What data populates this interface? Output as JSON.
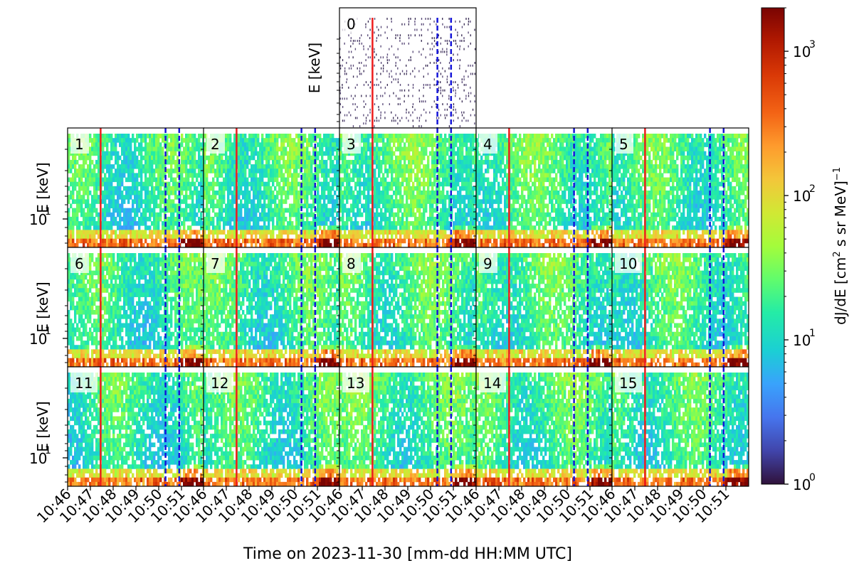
{
  "chart_data": {
    "type": "heatmap",
    "title": "",
    "date": "2023-11-30",
    "xlabel": "Time on 2023-11-30 [mm-dd HH:MM UTC]",
    "ylabel": "E [keV]",
    "y_tick_label_base": "10",
    "y_tick_label_exp": "1",
    "x_tick_labels": [
      "10:46",
      "10:47",
      "10:48",
      "10:49",
      "10:50",
      "10:51"
    ],
    "x_range_minutes": [
      0,
      6
    ],
    "y_scale": "log",
    "marker_lines": {
      "solid_red_minute": 1.45,
      "dashed_blue_minutes": [
        4.3,
        4.9
      ]
    },
    "colorbar": {
      "label": "dJ/dE [cm² s sr MeV]⁻¹",
      "label_main": "dJ/dE [cm",
      "label_sup1": "2",
      "label_mid": " s sr MeV]",
      "label_sup2": "−1",
      "scale": "log",
      "range": [
        1,
        2000
      ],
      "ticks": [
        {
          "base": "10",
          "exp": "0",
          "value": 1
        },
        {
          "base": "10",
          "exp": "1",
          "value": 10
        },
        {
          "base": "10",
          "exp": "2",
          "value": 100
        },
        {
          "base": "10",
          "exp": "3",
          "value": 1000
        }
      ],
      "colormap": "turbo"
    },
    "panels": [
      {
        "id": "0",
        "intensity": 0.05
      },
      {
        "id": "1",
        "intensity": 0.62
      },
      {
        "id": "2",
        "intensity": 0.7
      },
      {
        "id": "3",
        "intensity": 0.8
      },
      {
        "id": "4",
        "intensity": 0.76
      },
      {
        "id": "5",
        "intensity": 0.7
      },
      {
        "id": "6",
        "intensity": 0.63
      },
      {
        "id": "7",
        "intensity": 0.67
      },
      {
        "id": "8",
        "intensity": 0.76
      },
      {
        "id": "9",
        "intensity": 0.74
      },
      {
        "id": "10",
        "intensity": 0.69
      },
      {
        "id": "11",
        "intensity": 0.61
      },
      {
        "id": "12",
        "intensity": 0.67
      },
      {
        "id": "13",
        "intensity": 0.74
      },
      {
        "id": "14",
        "intensity": 0.72
      },
      {
        "id": "15",
        "intensity": 0.68
      }
    ]
  }
}
